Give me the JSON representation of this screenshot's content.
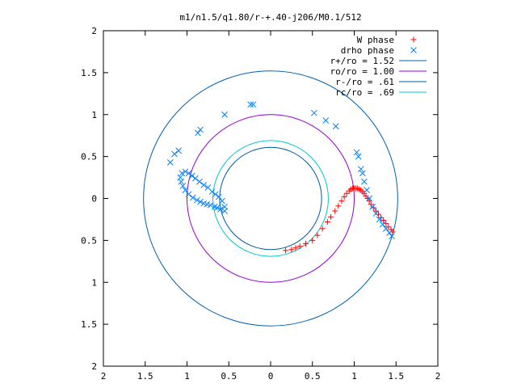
{
  "chart_data": {
    "type": "scatter",
    "title": "m1/n1.5/q1.80/r-+.40-j206/M0.1/512",
    "xlim": [
      -2,
      2
    ],
    "ylim": [
      -2,
      2
    ],
    "xticks": [
      "2",
      "1.5",
      "1",
      "0.5",
      "0",
      "0.5",
      "1",
      "1.5",
      "2"
    ],
    "yticks": [
      "2",
      "1.5",
      "1",
      "0.5",
      "0",
      "0.5",
      "1",
      "1.5",
      "2"
    ],
    "grid": false,
    "legend_position": "top-right",
    "circles": [
      {
        "name": "r+/ro = 1.52",
        "radius": 1.52,
        "color": "#0060ad"
      },
      {
        "name": "ro/ro = 1.00",
        "radius": 1.0,
        "color": "#9400d3"
      },
      {
        "name": "r-/ro = .61",
        "radius": 0.61,
        "color": "#00599e"
      },
      {
        "name": "rc/ro = .69",
        "radius": 0.69,
        "color": "#00c8c8"
      }
    ],
    "series": [
      {
        "name": "W phase",
        "marker": "plus",
        "color": "#ff0000",
        "x": [
          0.18,
          0.25,
          0.3,
          0.35,
          0.42,
          0.5,
          0.56,
          0.62,
          0.68,
          0.72,
          0.77,
          0.81,
          0.85,
          0.88,
          0.91,
          0.94,
          0.96,
          0.98,
          1.0,
          1.02,
          1.04,
          1.06,
          1.08,
          1.1,
          1.12,
          1.14,
          1.16,
          1.18,
          1.2,
          1.23,
          1.26,
          1.29,
          1.32,
          1.35,
          1.38,
          1.41,
          1.44,
          1.46
        ],
        "y": [
          -0.62,
          -0.61,
          -0.59,
          -0.57,
          -0.54,
          -0.5,
          -0.44,
          -0.36,
          -0.28,
          -0.22,
          -0.15,
          -0.09,
          -0.03,
          0.02,
          0.06,
          0.09,
          0.11,
          0.12,
          0.12,
          0.12,
          0.12,
          0.11,
          0.1,
          0.08,
          0.06,
          0.03,
          0.0,
          -0.03,
          -0.07,
          -0.11,
          -0.15,
          -0.19,
          -0.23,
          -0.26,
          -0.3,
          -0.34,
          -0.37,
          -0.4
        ]
      },
      {
        "name": "drho phase",
        "marker": "cross",
        "color": "#0080ff",
        "x": [
          -0.55,
          -0.6,
          -0.64,
          -0.67,
          -0.72,
          -0.76,
          -0.8,
          -0.84,
          -0.88,
          -0.93,
          -0.98,
          -1.02,
          -1.05,
          -1.07,
          -1.08,
          -1.06,
          -1.02,
          -0.98,
          -0.94,
          -0.9,
          -0.85,
          -0.8,
          -0.75,
          -0.7,
          -0.66,
          -0.62,
          -0.58,
          -0.55,
          -0.87,
          -0.84,
          -0.55,
          -0.24,
          -0.21,
          0.52,
          0.66,
          0.78,
          1.03,
          1.05,
          1.08,
          1.1,
          1.12,
          1.15,
          1.18,
          1.22,
          1.26,
          1.3,
          1.34,
          1.38,
          1.42,
          1.45,
          -1.2,
          -1.15,
          -1.1
        ],
        "y": [
          -0.15,
          -0.13,
          -0.11,
          -0.1,
          -0.08,
          -0.07,
          -0.06,
          -0.04,
          -0.02,
          0.01,
          0.05,
          0.1,
          0.15,
          0.2,
          0.25,
          0.3,
          0.32,
          0.3,
          0.27,
          0.24,
          0.2,
          0.16,
          0.13,
          0.08,
          0.05,
          0.02,
          -0.03,
          -0.1,
          0.78,
          0.82,
          1.0,
          1.12,
          1.12,
          1.02,
          0.93,
          0.86,
          0.55,
          0.5,
          0.35,
          0.3,
          0.2,
          0.1,
          0.0,
          -0.1,
          -0.18,
          -0.25,
          -0.31,
          -0.36,
          -0.41,
          -0.45,
          0.43,
          0.53,
          0.57
        ]
      }
    ]
  }
}
